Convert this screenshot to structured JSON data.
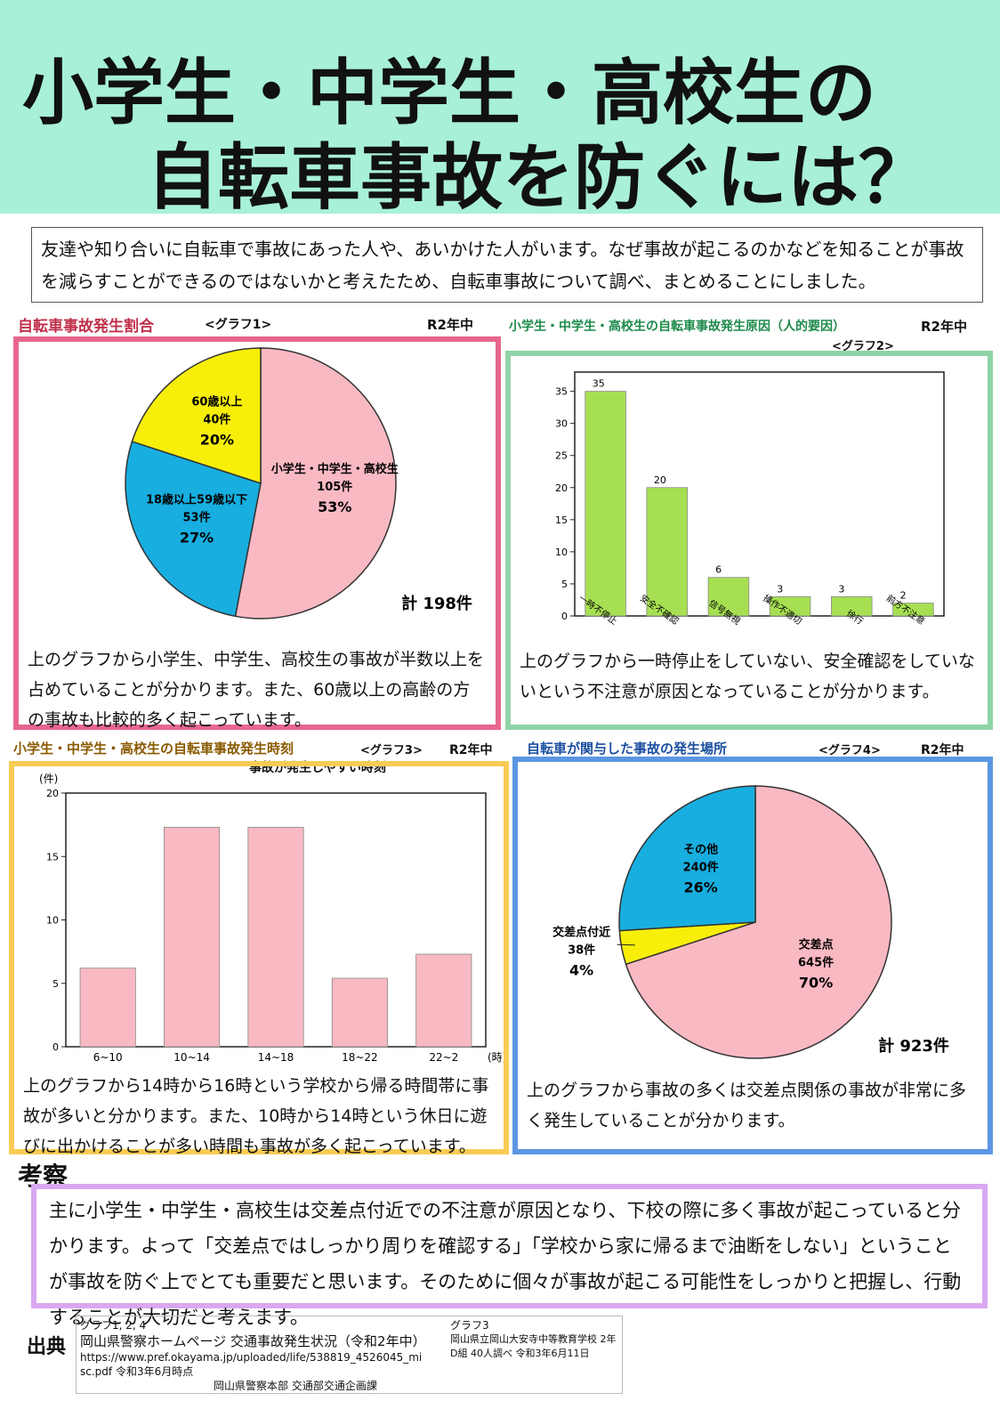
{
  "header": {
    "title_line1": "小学生・中学生・高校生の",
    "title_line2": "自転車事故を防ぐには？"
  },
  "intro": "友達や知り合いに自転車で事故にあった人や、あいかけた人がいます。なぜ事故が起こるのかなどを知ることが事故を減らすことができるのではないかと考えたため、自転車事故について調べ、まとめることにしました。",
  "chart_data": [
    {
      "type": "pie",
      "title": "自転車事故発生割合",
      "label": "<グラフ1>",
      "period": "R2年中",
      "categories": [
        "小学生・中学生・高校生",
        "18歳以上59歳以下",
        "60歳以上"
      ],
      "values": [
        53,
        27,
        20
      ],
      "value_labels": [
        "53%",
        "27%",
        "20%"
      ],
      "counts": [
        105,
        53,
        40
      ],
      "count_labels": [
        "105件",
        "53件",
        "40件"
      ],
      "colors": [
        "#f9b9c3",
        "#18aee0",
        "#f7ef0a"
      ],
      "total_label": "計 198件"
    },
    {
      "type": "bar",
      "title": "小学生・中学生・高校生の自転車事故発生原因（人的要因）",
      "label": "<グラフ2>",
      "period": "R2年中",
      "categories": [
        "一時不停止",
        "安全不確認",
        "信号無視",
        "操作不適切",
        "徐行",
        "前方不注意"
      ],
      "values": [
        35,
        20,
        6,
        3,
        3,
        2
      ],
      "color": "#a6e052",
      "ylim": [
        0,
        38
      ],
      "yticks": [
        0,
        5,
        10,
        15,
        20,
        25,
        30,
        35
      ],
      "data_labels": true
    },
    {
      "type": "bar",
      "title": "小学生・中学生・高校生の自転車事故発生時刻",
      "label": "<グラフ3>",
      "period": "R2年中",
      "subtitle": "事故が発生しやすい時刻",
      "ylabel": "(件)",
      "xlabel": "(時)",
      "categories": [
        "6~10",
        "10~14",
        "14~18",
        "18~22",
        "22~2"
      ],
      "values": [
        6.2,
        17.3,
        17.3,
        5.4,
        7.3
      ],
      "color": "#f9b9c3",
      "ylim": [
        0,
        20
      ],
      "yticks": [
        0,
        5,
        10,
        15,
        20
      ],
      "data_labels": false
    },
    {
      "type": "pie",
      "title": "自転車が関与した事故の発生場所",
      "label": "<グラフ4>",
      "period": "R2年中",
      "categories": [
        "交差点",
        "交差点付近",
        "その他"
      ],
      "values": [
        70,
        4,
        26
      ],
      "value_labels": [
        "70%",
        "4%",
        "26%"
      ],
      "counts": [
        645,
        38,
        240
      ],
      "count_labels": [
        "645件",
        "38件",
        "240件"
      ],
      "colors": [
        "#f9b9c3",
        "#f7ef0a",
        "#18aee0"
      ],
      "total_label": "計 923件"
    }
  ],
  "comments": [
    "上のグラフから小学生、中学生、高校生の事故が半数以上を占めていることが分かります。また、60歳以上の高齢の方の事故も比較的多く起こっています。",
    "上のグラフから一時停止をしていない、安全確認をしていないという不注意が原因となっていることが分かります。",
    "上のグラフから14時から16時という学校から帰る時間帯に事故が多いと分かります。また、10時から14時という休日に遊びに出かけることが多い時間も事故が多く起こっています。",
    "上のグラフから事故の多くは交差点関係の事故が非常に多く発生していることが分かります。"
  ],
  "consideration": {
    "heading": "考察",
    "text": "主に小学生・中学生・高校生は交差点付近での不注意が原因となり、下校の際に多く事故が起こっていると分かります。よって「交差点ではしっかり周りを確認する」「学校から家に帰るまで油断をしない」ということが事故を防ぐ上でとても重要だと思います。そのために個々が事故が起こる可能性をしっかりと把握し、行動することが大切だと考えます。"
  },
  "sources": {
    "heading": "出典",
    "graphs_a": "グラフ1, 2, 4",
    "source_a": "岡山県警察ホームページ 交通事故発生状況（令和2年中）",
    "url": "https://www.pref.okayama.jp/uploaded/life/538819_4526045_misc.pdf 令和3年6月時点",
    "org": "岡山県警察本部 交通部交通企画課",
    "graphs_b": "グラフ3",
    "source_b": "岡山県立岡山大安寺中等教育学校 2年D組 40人調べ 令和3年6月11日"
  }
}
